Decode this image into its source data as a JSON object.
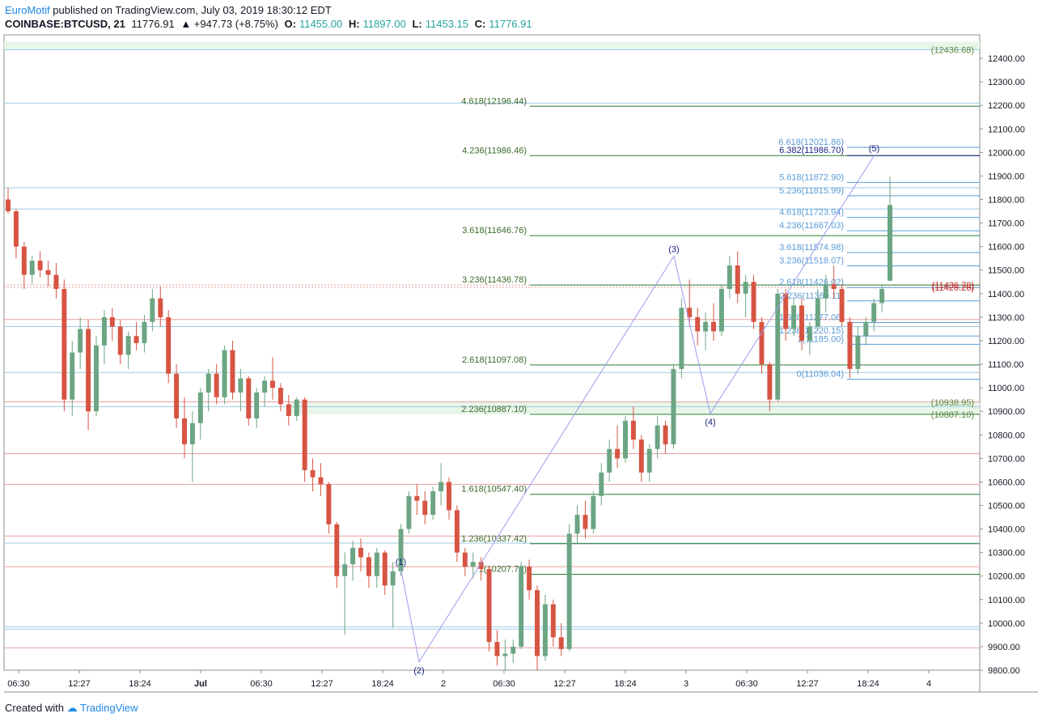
{
  "header": {
    "author": "EuroMotif",
    "published_text": "published on TradingView.com, July 03, 2019 18:30:12 EDT"
  },
  "symbol_line": {
    "symbol": "COINBASE:BTCUSD, 21",
    "last": "11776.91",
    "change": "▲ +947.73 (+8.75%)",
    "o_label": "O:",
    "o": "11455.00",
    "h_label": "H:",
    "h": "11897.00",
    "l_label": "L:",
    "l": "11453.15",
    "c_label": "C:",
    "c": "11776.91"
  },
  "footer": {
    "created_with": "Created with",
    "brand": "TradingView"
  },
  "colors": {
    "up": "#6ba583",
    "down": "#d75442",
    "fib_green": "#2e7d32",
    "fib_blue": "#5b9bd5",
    "wave_line": "#9c9cf0",
    "wave_label": "#1a237e",
    "axis_text": "#131722",
    "grid_h_red": "#e8a0a0",
    "grid_h_blue": "#9ecbe3"
  },
  "chart_data": {
    "type": "candlestick",
    "symbol": "COINBASE:BTCUSD",
    "timeframe": "21",
    "y_axis": {
      "range": [
        9800,
        12500
      ],
      "ticks": [
        9800,
        9900,
        10000,
        10100,
        10200,
        10300,
        10400,
        10500,
        10600,
        10700,
        10800,
        10900,
        11000,
        11100,
        11200,
        11300,
        11400,
        11500,
        11600,
        11700,
        11800,
        11900,
        12000,
        12100,
        12200,
        12300,
        12400
      ],
      "tick_labels": [
        "9800.00",
        "9900.00",
        "10000.00",
        "10100.00",
        "10200.00",
        "10300.00",
        "10400.00",
        "10500.00",
        "10600.00",
        "10700.00",
        "10800.00",
        "10900.00",
        "11000.00",
        "11100.00",
        "11200.00",
        "11300.00",
        "11400.00",
        "11500.00",
        "11600.00",
        "11700.00",
        "11800.00",
        "11900.00",
        "12000.00",
        "12100.00",
        "12200.00",
        "12300.00",
        "12400.00"
      ]
    },
    "x_axis": {
      "range": [
        0,
        160
      ],
      "ticks": [
        2,
        12,
        22,
        32,
        42,
        52,
        62,
        72,
        82,
        92,
        102,
        112,
        122,
        132,
        142,
        152
      ],
      "tick_labels": [
        "06:30",
        "12:27",
        "18:24",
        "Jul",
        "06:30",
        "12:27",
        "18:24",
        "2",
        "06:30",
        "12:27",
        "18:24",
        "3",
        "06:30",
        "12:27",
        "18:24",
        "4"
      ]
    },
    "candles_ohlc": [
      [
        11800,
        11850,
        11740,
        11750
      ],
      [
        11750,
        11760,
        11550,
        11600
      ],
      [
        11600,
        11620,
        11420,
        11480
      ],
      [
        11480,
        11560,
        11440,
        11540
      ],
      [
        11540,
        11580,
        11470,
        11500
      ],
      [
        11500,
        11540,
        11430,
        11480
      ],
      [
        11480,
        11530,
        11380,
        11420
      ],
      [
        11420,
        11460,
        10900,
        10950
      ],
      [
        10950,
        11200,
        10880,
        11150
      ],
      [
        11150,
        11300,
        11080,
        11250
      ],
      [
        11250,
        11290,
        10820,
        10900
      ],
      [
        10900,
        11220,
        10880,
        11180
      ],
      [
        11180,
        11330,
        11100,
        11300
      ],
      [
        11300,
        11340,
        11200,
        11260
      ],
      [
        11260,
        11290,
        11100,
        11140
      ],
      [
        11140,
        11240,
        11080,
        11220
      ],
      [
        11220,
        11280,
        11160,
        11190
      ],
      [
        11190,
        11310,
        11150,
        11280
      ],
      [
        11280,
        11420,
        11240,
        11380
      ],
      [
        11380,
        11430,
        11260,
        11300
      ],
      [
        11300,
        11330,
        11020,
        11060
      ],
      [
        11060,
        11100,
        10830,
        10870
      ],
      [
        10870,
        10960,
        10700,
        10760
      ],
      [
        10760,
        10900,
        10600,
        10850
      ],
      [
        10850,
        11000,
        10780,
        10980
      ],
      [
        10980,
        11080,
        10900,
        11060
      ],
      [
        11060,
        11100,
        10930,
        10960
      ],
      [
        10960,
        11180,
        10930,
        11160
      ],
      [
        11160,
        11200,
        10950,
        10980
      ],
      [
        10980,
        11080,
        10900,
        11040
      ],
      [
        11040,
        11050,
        10840,
        10870
      ],
      [
        10870,
        11000,
        10830,
        10980
      ],
      [
        10980,
        11050,
        10920,
        11030
      ],
      [
        11030,
        11130,
        10950,
        11000
      ],
      [
        11000,
        11020,
        10900,
        10930
      ],
      [
        10930,
        10970,
        10840,
        10880
      ],
      [
        10880,
        10960,
        10860,
        10950
      ],
      [
        10950,
        10960,
        10600,
        10650
      ],
      [
        10650,
        10700,
        10560,
        10620
      ],
      [
        10620,
        10680,
        10540,
        10590
      ],
      [
        10590,
        10600,
        10380,
        10420
      ],
      [
        10420,
        10430,
        10150,
        10200
      ],
      [
        10200,
        10300,
        9950,
        10250
      ],
      [
        10250,
        10350,
        10180,
        10320
      ],
      [
        10320,
        10360,
        10220,
        10280
      ],
      [
        10280,
        10300,
        10150,
        10200
      ],
      [
        10200,
        10320,
        10150,
        10300
      ],
      [
        10300,
        10310,
        10120,
        10160
      ],
      [
        10160,
        10260,
        9980,
        10220
      ],
      [
        10220,
        10420,
        10200,
        10400
      ],
      [
        10400,
        10560,
        10380,
        10540
      ],
      [
        10540,
        10590,
        10460,
        10520
      ],
      [
        10520,
        10560,
        10420,
        10460
      ],
      [
        10460,
        10580,
        10440,
        10560
      ],
      [
        10560,
        10680,
        10500,
        10600
      ],
      [
        10600,
        10620,
        10440,
        10480
      ],
      [
        10480,
        10500,
        10260,
        10300
      ],
      [
        10300,
        10320,
        10200,
        10240
      ],
      [
        10240,
        10300,
        10190,
        10260
      ],
      [
        10260,
        10280,
        10180,
        10230
      ],
      [
        10230,
        10240,
        9880,
        9920
      ],
      [
        9920,
        9970,
        9820,
        9860
      ],
      [
        9860,
        9930,
        9800,
        9870
      ],
      [
        9870,
        9930,
        9830,
        9900
      ],
      [
        9900,
        10260,
        9890,
        10240
      ],
      [
        10240,
        10270,
        10100,
        10140
      ],
      [
        10140,
        10160,
        9800,
        9860
      ],
      [
        9860,
        10120,
        9840,
        10080
      ],
      [
        10080,
        10100,
        9900,
        9940
      ],
      [
        9940,
        10000,
        9860,
        9890
      ],
      [
        9890,
        10420,
        9880,
        10380
      ],
      [
        10380,
        10500,
        10340,
        10460
      ],
      [
        10460,
        10520,
        10360,
        10400
      ],
      [
        10400,
        10560,
        10380,
        10540
      ],
      [
        10540,
        10680,
        10500,
        10640
      ],
      [
        10640,
        10780,
        10600,
        10740
      ],
      [
        10740,
        10840,
        10660,
        10700
      ],
      [
        10700,
        10880,
        10680,
        10860
      ],
      [
        10860,
        10920,
        10740,
        10780
      ],
      [
        10780,
        10800,
        10600,
        10640
      ],
      [
        10640,
        10760,
        10600,
        10740
      ],
      [
        10740,
        10880,
        10700,
        10840
      ],
      [
        10840,
        10860,
        10720,
        10760
      ],
      [
        10760,
        11100,
        10740,
        11080
      ],
      [
        11080,
        11380,
        11040,
        11340
      ],
      [
        11340,
        11460,
        11260,
        11300
      ],
      [
        11300,
        11340,
        11180,
        11240
      ],
      [
        11240,
        11320,
        11160,
        11280
      ],
      [
        11280,
        11360,
        11200,
        11240
      ],
      [
        11240,
        11440,
        11220,
        11420
      ],
      [
        11420,
        11560,
        11380,
        11520
      ],
      [
        11520,
        11580,
        11360,
        11400
      ],
      [
        11400,
        11480,
        11300,
        11450
      ],
      [
        11450,
        11480,
        11250,
        11280
      ],
      [
        11280,
        11300,
        11060,
        11100
      ],
      [
        11100,
        11110,
        10900,
        10950
      ],
      [
        10950,
        11420,
        10940,
        11400
      ],
      [
        11400,
        11420,
        11200,
        11250
      ],
      [
        11250,
        11380,
        11220,
        11350
      ],
      [
        11350,
        11380,
        11160,
        11200
      ],
      [
        11200,
        11280,
        11140,
        11260
      ],
      [
        11260,
        11420,
        11240,
        11380
      ],
      [
        11380,
        11480,
        11320,
        11440
      ],
      [
        11440,
        11520,
        11380,
        11420
      ],
      [
        11420,
        11440,
        11260,
        11280
      ],
      [
        11280,
        11300,
        11040,
        11080
      ],
      [
        11080,
        11260,
        11060,
        11220
      ],
      [
        11220,
        11300,
        11180,
        11280
      ],
      [
        11280,
        11380,
        11240,
        11360
      ],
      [
        11360,
        11440,
        11320,
        11420
      ],
      [
        11455,
        11897,
        11453,
        11776.91
      ]
    ],
    "fib_levels_green": [
      {
        "ratio": "4.618",
        "value": 12196.44
      },
      {
        "ratio": "4.236",
        "value": 11986.46
      },
      {
        "ratio": "3.618",
        "value": 11646.76
      },
      {
        "ratio": "3.236",
        "value": 11436.78
      },
      {
        "ratio": "2.618",
        "value": 11097.08
      },
      {
        "ratio": "2.236",
        "value": 10887.1
      },
      {
        "ratio": "1.618",
        "value": 10547.4
      },
      {
        "ratio": "1.236",
        "value": 10337.42
      },
      {
        "ratio": "1",
        "value": 10207.7
      }
    ],
    "fib_labels_green": [
      "4.618(12196.44)",
      "4.236(11986.46)",
      "3.618(11646.76)",
      "3.236(11436.78)",
      "2.618(11097.08)",
      "2.236(10887.10)",
      "1.618(10547.40)",
      "1.236(10337.42)",
      "1(10207.70)"
    ],
    "fib_levels_blue": [
      {
        "ratio": "6.618",
        "value": 12021.86
      },
      {
        "ratio": "6.382",
        "value": 11986.7
      },
      {
        "ratio": "5.618",
        "value": 11872.9
      },
      {
        "ratio": "5.236",
        "value": 11815.99
      },
      {
        "ratio": "4.618",
        "value": 11723.94
      },
      {
        "ratio": "4.236",
        "value": 11667.03
      },
      {
        "ratio": "3.618",
        "value": 11574.98
      },
      {
        "ratio": "3.236",
        "value": 11518.07
      },
      {
        "ratio": "2.618",
        "value": 11426.02
      },
      {
        "ratio": "2.236",
        "value": 11369.11
      },
      {
        "ratio": "1.618",
        "value": 11277.06
      },
      {
        "ratio": "1.236",
        "value": 11220.15
      },
      {
        "ratio": "1",
        "value": 11185.0
      },
      {
        "ratio": "0",
        "value": 11036.04
      }
    ],
    "fib_labels_blue": [
      "6.618(12021.86)",
      "6.382(11986.70)",
      "5.618(11872.90)",
      "5.236(11815.99)",
      "4.618(11723.94)",
      "4.236(11667.03)",
      "3.618(11574.98)",
      "3.236(11518.07)",
      "2.618(11426.02)",
      "2.236(11369.11)",
      "1.618(11277.06)",
      "1.236(11220.15)",
      "1(11185.00)",
      "0(11036.04)"
    ],
    "right_labels": [
      "(12436.68)",
      "(11436.78)",
      "(11426.26)",
      "(10938.95)",
      "(10887.10)"
    ],
    "wave_points": [
      {
        "label": "(1)",
        "x": 65,
        "y": 10230
      },
      {
        "label": "(2)",
        "x": 68,
        "y": 9835
      },
      {
        "label": "(3)",
        "x": 110,
        "y": 11560
      },
      {
        "label": "(4)",
        "x": 116,
        "y": 10890
      },
      {
        "label": "(5)",
        "x": 143,
        "y": 11986.7
      }
    ],
    "horizontal_lines_red": [
      11436.78,
      11426.26,
      11290,
      10940,
      10720,
      10590,
      10370,
      10240,
      9895
    ],
    "horizontal_lines_blue": [
      12436.68,
      12210,
      11850,
      11760,
      11260,
      11065,
      10920,
      10340,
      9985,
      9975
    ]
  }
}
